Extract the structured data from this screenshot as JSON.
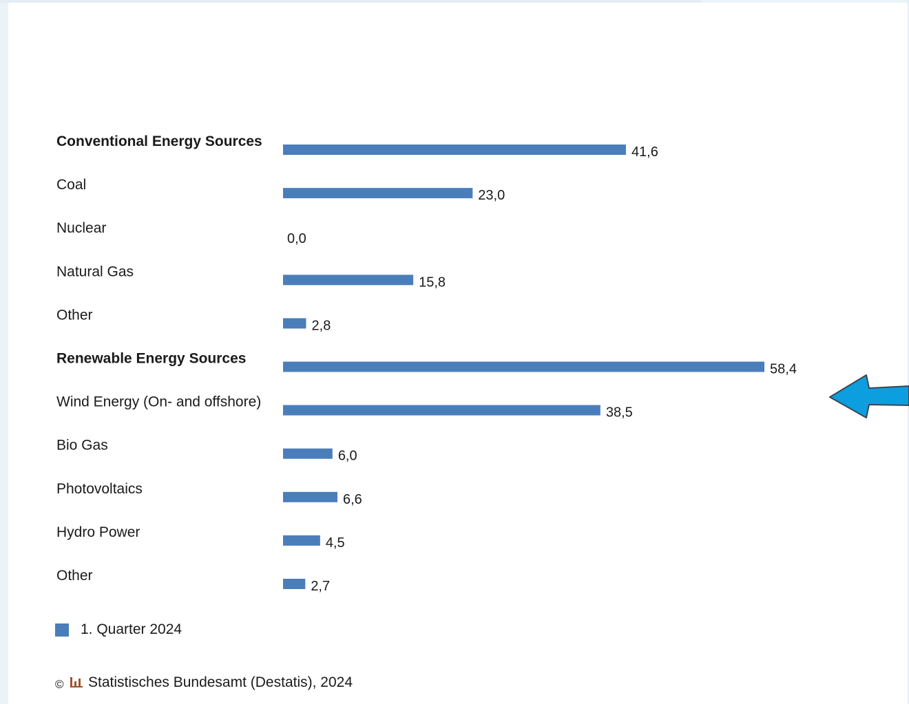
{
  "chart_data": {
    "type": "bar",
    "orientation": "horizontal",
    "categories": [
      "Conventional Energy Sources",
      "Coal",
      "Nuclear",
      "Natural Gas",
      "Other",
      "Renewable Energy Sources",
      "Wind Energy (On- and offshore)",
      "Bio Gas",
      "Photovoltaics",
      "Hydro Power",
      "Other"
    ],
    "bold_categories": [
      0,
      5
    ],
    "series": [
      {
        "name": "1. Quarter 2024",
        "values": [
          41.6,
          23.0,
          0.0,
          15.8,
          2.8,
          58.4,
          38.5,
          6.0,
          6.6,
          4.5,
          2.7
        ],
        "value_labels": [
          "41,6",
          "23,0",
          "0,0",
          "15,8",
          "2,8",
          "58,4",
          "38,5",
          "6,0",
          "6,6",
          "4,5",
          "2,7"
        ]
      }
    ],
    "xlim": [
      0,
      60
    ],
    "grid": false,
    "legend_position": "bottom-left"
  },
  "colors": {
    "bar": "#4a7ebb",
    "arrow": "#0d9ee0",
    "source_icon": "#a0522d"
  },
  "source": {
    "copyright_symbol": "©",
    "text": "Statistisches Bundesamt (Destatis), 2024"
  },
  "annotation": {
    "icon": "arrow-left-icon",
    "points_to_category": "Wind Energy (On- and offshore)"
  }
}
